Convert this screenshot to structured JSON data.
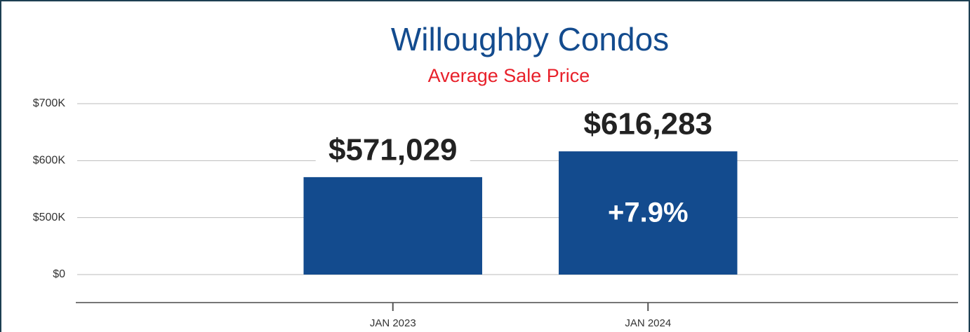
{
  "chart_data": {
    "type": "bar",
    "title": "Willoughby Condos",
    "subtitle": "Average Sale Price",
    "categories": [
      "JAN 2023",
      "JAN 2024"
    ],
    "values": [
      571029,
      616283
    ],
    "value_labels": [
      "$571,029",
      "$616,283"
    ],
    "annotation": "+7.9%",
    "color": "#134b8e",
    "ylim": [
      0,
      700000
    ],
    "yticks": [
      {
        "value": 0,
        "label": "$0"
      },
      {
        "value": 500000,
        "label": "$500K"
      },
      {
        "value": 600000,
        "label": "$600K"
      },
      {
        "value": 700000,
        "label": "$700K"
      }
    ],
    "grid": true
  }
}
